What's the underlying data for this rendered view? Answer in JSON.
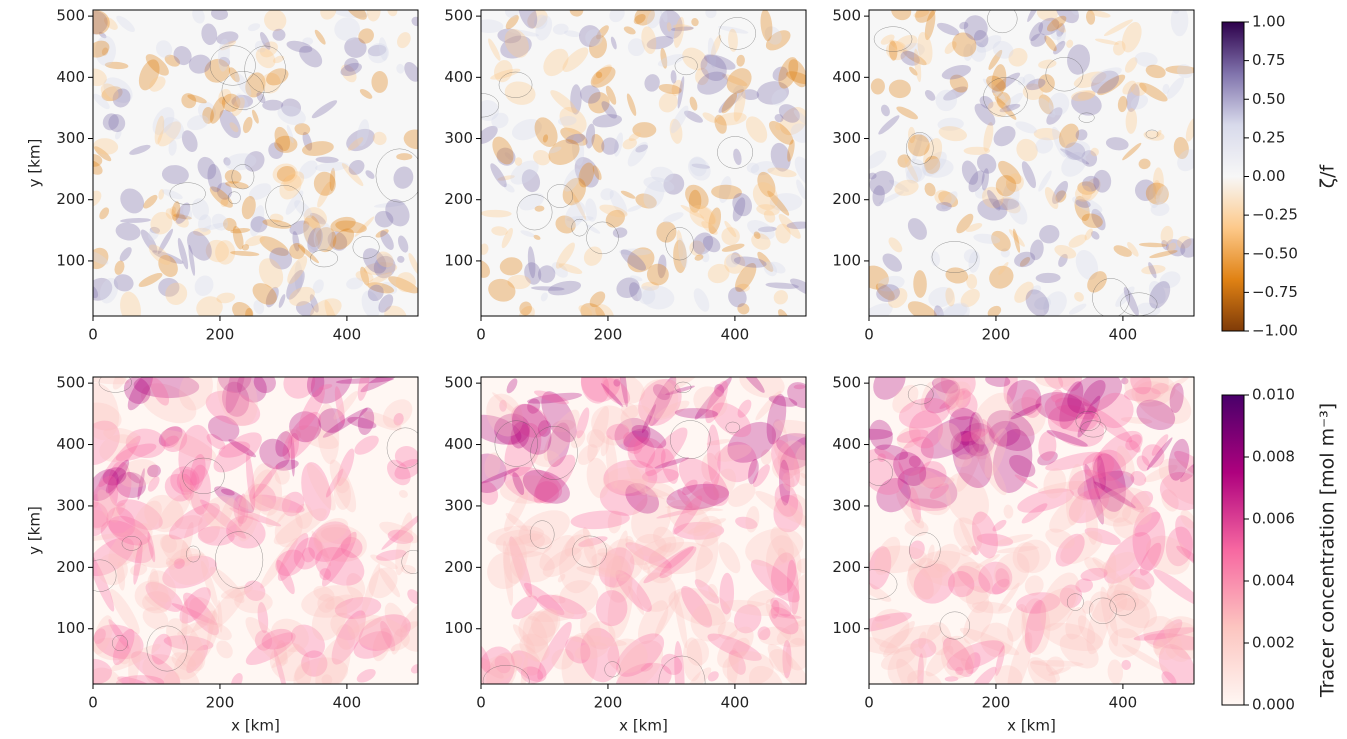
{
  "chart_data": [
    {
      "type": "heatmap",
      "xlim": [
        0,
        512
      ],
      "ylim": [
        10,
        510
      ],
      "xticks": [
        0,
        200,
        400
      ],
      "yticks": [
        100,
        200,
        300,
        400,
        500
      ],
      "ylabel": "y [km]"
    },
    {
      "type": "heatmap",
      "xlim": [
        0,
        512
      ],
      "ylim": [
        10,
        510
      ],
      "xticks": [
        0,
        200,
        400
      ],
      "yticks": [
        100,
        200,
        300,
        400,
        500
      ]
    },
    {
      "type": "heatmap",
      "xlim": [
        0,
        512
      ],
      "ylim": [
        10,
        510
      ],
      "xticks": [
        0,
        200,
        400
      ],
      "yticks": [
        100,
        200,
        300,
        400,
        500
      ],
      "colorbar": {
        "label": "ζ/f",
        "lim": [
          -1,
          1
        ],
        "ticks": [
          {
            "value": -1,
            "label": "−1.00"
          },
          {
            "value": -0.75,
            "label": "−0.75"
          },
          {
            "value": -0.5,
            "label": "−0.50"
          },
          {
            "value": -0.25,
            "label": "−0.25"
          },
          {
            "value": 0,
            "label": "0.00"
          },
          {
            "value": 0.25,
            "label": "0.25"
          },
          {
            "value": 0.5,
            "label": "0.50"
          },
          {
            "value": 0.75,
            "label": "0.75"
          },
          {
            "value": 1,
            "label": "1.00"
          }
        ],
        "colors": [
          "#7f3b08",
          "#e08214",
          "#fdc98a",
          "#f7f7f7",
          "#d8daeb",
          "#8073ac",
          "#2d004b"
        ]
      }
    },
    {
      "type": "heatmap",
      "xlim": [
        0,
        512
      ],
      "ylim": [
        10,
        510
      ],
      "xticks": [
        0,
        200,
        400
      ],
      "yticks": [
        100,
        200,
        300,
        400,
        500
      ],
      "xlabel": "x [km]",
      "ylabel": "y [km]"
    },
    {
      "type": "heatmap",
      "xlim": [
        0,
        512
      ],
      "ylim": [
        10,
        510
      ],
      "xticks": [
        0,
        200,
        400
      ],
      "yticks": [
        100,
        200,
        300,
        400,
        500
      ],
      "xlabel": "x [km]"
    },
    {
      "type": "heatmap",
      "xlim": [
        0,
        512
      ],
      "ylim": [
        10,
        510
      ],
      "xticks": [
        0,
        200,
        400
      ],
      "yticks": [
        100,
        200,
        300,
        400,
        500
      ],
      "xlabel": "x [km]",
      "colorbar": {
        "label": "Tracer concentration [mol m⁻³]",
        "lim": [
          0,
          0.01
        ],
        "ticks": [
          {
            "value": 0,
            "label": "0.000"
          },
          {
            "value": 0.002,
            "label": "0.002"
          },
          {
            "value": 0.004,
            "label": "0.004"
          },
          {
            "value": 0.006,
            "label": "0.006"
          },
          {
            "value": 0.008,
            "label": "0.008"
          },
          {
            "value": 0.01,
            "label": "0.010"
          }
        ],
        "colors": [
          "#fff7f3",
          "#fcc5c0",
          "#f768a1",
          "#ae017e",
          "#49006a"
        ]
      }
    }
  ]
}
